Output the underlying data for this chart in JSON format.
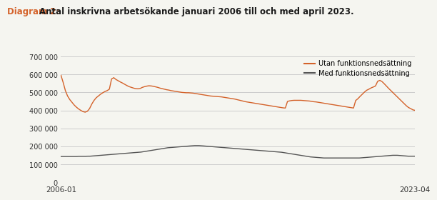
{
  "title_prefix": "Diagram 2: ",
  "title_main": "Antal inskrivna arbetsökande januari 2006 till och med april 2023.",
  "title_prefix_color": "#d4622a",
  "title_main_color": "#1a1a1a",
  "legend_entries": [
    "Utan funktionsnedsättning",
    "Med funktionsnedsättning"
  ],
  "line_colors": [
    "#d4622a",
    "#555555"
  ],
  "ylim": [
    0,
    700000
  ],
  "yticks": [
    0,
    100000,
    200000,
    300000,
    400000,
    500000,
    600000,
    700000
  ],
  "ytick_labels": [
    "0",
    "100 000",
    "200 000",
    "300 000",
    "400 000",
    "500 000",
    "600 000",
    "700 000"
  ],
  "xlabel_left": "2006-01",
  "xlabel_right": "2023-04",
  "background_color": "#f5f5f0",
  "grid_color": "#cccccc",
  "utan": [
    595000,
    555000,
    510000,
    480000,
    460000,
    445000,
    430000,
    418000,
    408000,
    400000,
    393000,
    390000,
    395000,
    410000,
    435000,
    455000,
    470000,
    480000,
    490000,
    498000,
    505000,
    510000,
    518000,
    575000,
    582000,
    572000,
    565000,
    558000,
    552000,
    545000,
    538000,
    532000,
    528000,
    524000,
    521000,
    520000,
    522000,
    528000,
    532000,
    535000,
    537000,
    536000,
    534000,
    531000,
    528000,
    524000,
    521000,
    518000,
    515000,
    513000,
    510000,
    508000,
    506000,
    504000,
    502000,
    500000,
    499000,
    498000,
    498000,
    497000,
    496000,
    494000,
    492000,
    490000,
    488000,
    486000,
    484000,
    482000,
    480000,
    479000,
    478000,
    477000,
    476000,
    475000,
    473000,
    471000,
    469000,
    467000,
    465000,
    463000,
    460000,
    457000,
    454000,
    451000,
    448000,
    446000,
    444000,
    442000,
    440000,
    438000,
    436000,
    434000,
    432000,
    430000,
    428000,
    426000,
    424000,
    422000,
    420000,
    418000,
    416000,
    414000,
    413000,
    450000,
    453000,
    455000,
    456000,
    456000,
    456000,
    456000,
    455000,
    454000,
    453000,
    452000,
    450000,
    448000,
    447000,
    445000,
    443000,
    441000,
    439000,
    437000,
    435000,
    433000,
    431000,
    429000,
    427000,
    425000,
    423000,
    421000,
    419000,
    417000,
    415000,
    413000,
    455000,
    465000,
    478000,
    490000,
    502000,
    512000,
    518000,
    525000,
    530000,
    536000,
    562000,
    567000,
    560000,
    548000,
    535000,
    522000,
    510000,
    498000,
    486000,
    474000,
    462000,
    450000,
    438000,
    426000,
    416000,
    410000,
    403000,
    400000
  ],
  "med": [
    143000,
    143000,
    143000,
    143000,
    143000,
    143000,
    143000,
    143000,
    144000,
    144000,
    144000,
    144000,
    145000,
    145000,
    146000,
    147000,
    148000,
    149000,
    150000,
    151000,
    152000,
    153000,
    154000,
    155000,
    156000,
    157000,
    158000,
    159000,
    160000,
    161000,
    162000,
    163000,
    164000,
    165000,
    166000,
    167000,
    168000,
    170000,
    172000,
    174000,
    176000,
    178000,
    180000,
    182000,
    184000,
    186000,
    188000,
    190000,
    192000,
    193000,
    194000,
    195000,
    196000,
    197000,
    198000,
    199000,
    200000,
    201000,
    202000,
    203000,
    204000,
    204000,
    204000,
    203000,
    202000,
    201000,
    200000,
    199000,
    198000,
    197000,
    196000,
    195000,
    194000,
    193000,
    192000,
    191000,
    190000,
    189000,
    188000,
    187000,
    186000,
    185000,
    184000,
    183000,
    182000,
    181000,
    180000,
    179000,
    178000,
    177000,
    176000,
    175000,
    174000,
    173000,
    172000,
    171000,
    170000,
    169000,
    168000,
    167000,
    165000,
    163000,
    161000,
    159000,
    157000,
    155000,
    153000,
    151000,
    149000,
    147000,
    145000,
    143000,
    141000,
    140000,
    139000,
    138000,
    137000,
    136000,
    135000,
    135000,
    135000,
    135000,
    135000,
    135000,
    135000,
    135000,
    135000,
    135000,
    135000,
    135000,
    135000,
    135000,
    135000,
    135000,
    135000,
    136000,
    137000,
    138000,
    139000,
    140000,
    141000,
    142000,
    143000,
    144000,
    145000,
    146000,
    147000,
    148000,
    149000,
    150000,
    150000,
    150000,
    149000,
    148000,
    147000,
    146000,
    145000,
    145000,
    145000,
    145000
  ]
}
